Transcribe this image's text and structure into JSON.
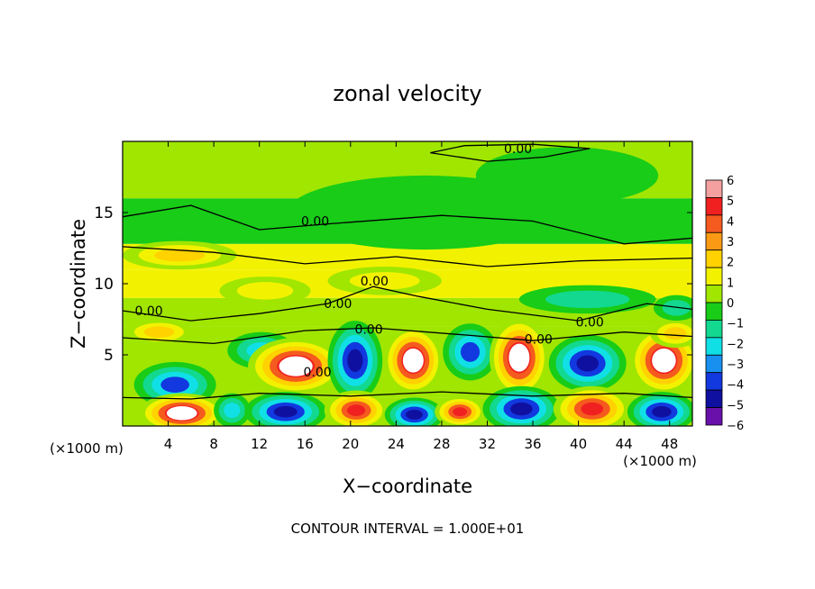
{
  "chart_data": {
    "type": "heatmap",
    "title": "zonal velocity",
    "xlabel": "X−coordinate",
    "ylabel": "Z−coordinate",
    "x_unit_left": "(×1000 m)",
    "x_unit_right": "(×1000 m)",
    "footer": "CONTOUR INTERVAL = 1.000E+01",
    "xlim": [
      0,
      50
    ],
    "ylim": [
      0,
      20
    ],
    "x_ticks": [
      4,
      8,
      12,
      16,
      20,
      24,
      28,
      32,
      36,
      40,
      44,
      48
    ],
    "x_tick_labels": [
      "4",
      "8",
      "12",
      "16",
      "20",
      "24",
      "28",
      "32",
      "36",
      "40",
      "44",
      "48"
    ],
    "y_ticks": [
      5,
      10,
      15
    ],
    "y_tick_labels": [
      "5",
      "10",
      "15"
    ],
    "colorbar": {
      "min": -6,
      "max": 6,
      "tick_labels": [
        "6",
        "5",
        "4",
        "3",
        "2",
        "1",
        "0",
        "−1",
        "−2",
        "−3",
        "−4",
        "−5",
        "−6"
      ],
      "colors": [
        "#f5a0a0",
        "#f02020",
        "#f55a1e",
        "#fa9a14",
        "#ffd200",
        "#f2f200",
        "#a0e600",
        "#18cc18",
        "#12d890",
        "#10e0e6",
        "#1890f0",
        "#1238e0",
        "#1010a0",
        "#6a10aa"
      ]
    },
    "contour_level": 0.0,
    "contour_labels": [
      {
        "text": "0.00",
        "x": 34.7,
        "y": 19.5
      },
      {
        "text": "0.00",
        "x": 16.9,
        "y": 14.4
      },
      {
        "text": "0.00",
        "x": 22.1,
        "y": 10.2
      },
      {
        "text": "0.00",
        "x": 18.9,
        "y": 8.6
      },
      {
        "text": "0.00",
        "x": 2.3,
        "y": 8.1
      },
      {
        "text": "0.00",
        "x": 21.6,
        "y": 6.8
      },
      {
        "text": "0.00",
        "x": 41.0,
        "y": 7.3
      },
      {
        "text": "0.00",
        "x": 36.5,
        "y": 6.1
      },
      {
        "text": "0.00",
        "x": 17.1,
        "y": 3.8
      }
    ],
    "cells": [
      {
        "x": 4.6,
        "y": 2.9,
        "v": -3.5,
        "rx": 3.6,
        "ry": 1.6
      },
      {
        "x": 12.2,
        "y": 5.3,
        "v": -2.5,
        "rx": 3.0,
        "ry": 1.3
      },
      {
        "x": 15.2,
        "y": 4.2,
        "v": 6,
        "rx": 4.2,
        "ry": 2.0
      },
      {
        "x": 20.4,
        "y": 4.6,
        "v": -4.5,
        "rx": 2.4,
        "ry": 2.8
      },
      {
        "x": 25.5,
        "y": 4.6,
        "v": 6,
        "rx": 2.6,
        "ry": 2.4
      },
      {
        "x": 30.5,
        "y": 5.2,
        "v": -3.5,
        "rx": 2.4,
        "ry": 2.0
      },
      {
        "x": 34.8,
        "y": 4.8,
        "v": 6,
        "rx": 2.6,
        "ry": 2.8
      },
      {
        "x": 40.8,
        "y": 4.4,
        "v": -4.5,
        "rx": 3.4,
        "ry": 2.0
      },
      {
        "x": 47.5,
        "y": 4.6,
        "v": 6,
        "rx": 3.0,
        "ry": 2.4
      },
      {
        "x": 5.2,
        "y": 0.9,
        "v": 6,
        "rx": 3.8,
        "ry": 1.4
      },
      {
        "x": 9.6,
        "y": 1.1,
        "v": -2.5,
        "rx": 1.6,
        "ry": 1.2
      },
      {
        "x": 14.3,
        "y": 1.0,
        "v": -4.5,
        "rx": 3.6,
        "ry": 1.4
      },
      {
        "x": 20.5,
        "y": 1.1,
        "v": 5,
        "rx": 2.8,
        "ry": 1.4
      },
      {
        "x": 25.6,
        "y": 0.8,
        "v": -4.5,
        "rx": 2.6,
        "ry": 1.2
      },
      {
        "x": 29.6,
        "y": 1.0,
        "v": 5,
        "rx": 2.2,
        "ry": 1.1
      },
      {
        "x": 35.0,
        "y": 1.2,
        "v": -5,
        "rx": 3.4,
        "ry": 1.6
      },
      {
        "x": 41.2,
        "y": 1.2,
        "v": 5,
        "rx": 3.4,
        "ry": 1.6
      },
      {
        "x": 47.3,
        "y": 1.0,
        "v": -4.5,
        "rx": 3.0,
        "ry": 1.4
      },
      {
        "x": 5.0,
        "y": 12.0,
        "v": 2.2,
        "rx": 5.0,
        "ry": 1.0
      },
      {
        "x": 3.2,
        "y": 6.6,
        "v": 2.5,
        "rx": 3.0,
        "ry": 0.9
      },
      {
        "x": 48.5,
        "y": 6.5,
        "v": 2.4,
        "rx": 2.2,
        "ry": 1.0
      },
      {
        "x": 40.8,
        "y": 8.9,
        "v": -1.5,
        "rx": 6.0,
        "ry": 1.0
      },
      {
        "x": 48.6,
        "y": 8.3,
        "v": -1.8,
        "rx": 2.0,
        "ry": 0.9
      },
      {
        "x": 26.5,
        "y": 15.0,
        "v": -0.8,
        "rx": 12.0,
        "ry": 2.6
      },
      {
        "x": 39.0,
        "y": 17.6,
        "v": -0.9,
        "rx": 8.0,
        "ry": 2.0
      },
      {
        "x": 23.0,
        "y": 10.2,
        "v": 2.0,
        "rx": 5.0,
        "ry": 1.0
      },
      {
        "x": 12.5,
        "y": 9.5,
        "v": 1.6,
        "rx": 4.0,
        "ry": 1.0
      }
    ]
  }
}
